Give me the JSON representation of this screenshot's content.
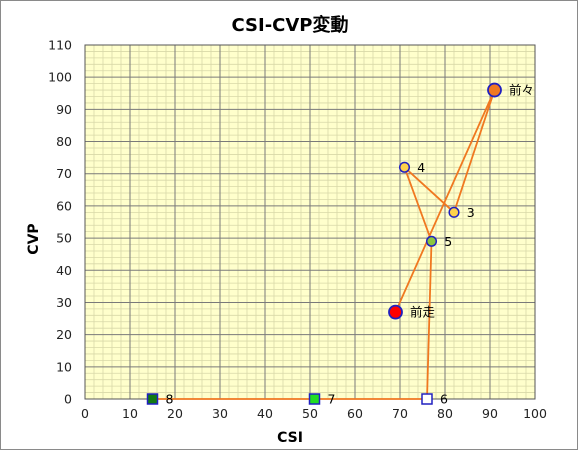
{
  "chart_data": {
    "type": "scatter",
    "title": "CSI-CVP変動",
    "xlabel": "CSI",
    "ylabel": "CVP",
    "xlim": [
      0,
      100
    ],
    "ylim": [
      0,
      110
    ],
    "x_ticks": [
      0,
      10,
      20,
      30,
      40,
      50,
      60,
      70,
      80,
      90,
      100
    ],
    "y_ticks": [
      0,
      10,
      20,
      30,
      40,
      50,
      60,
      70,
      80,
      90,
      100,
      110
    ],
    "grid": true,
    "minor_grid": true,
    "plot_background": "#ffffcc",
    "line_color": "#f07820",
    "points": [
      {
        "label": "前走",
        "x": 69,
        "y": 27,
        "marker": "circle",
        "fill": "#ff0000",
        "stroke": "#2020c0",
        "size": "large"
      },
      {
        "label": "前々",
        "x": 91,
        "y": 96,
        "marker": "circle",
        "fill": "#f07820",
        "stroke": "#2020c0",
        "size": "large"
      },
      {
        "label": "3",
        "x": 82,
        "y": 58,
        "marker": "circle",
        "fill": "#ffd24a",
        "stroke": "#2020c0",
        "size": "small"
      },
      {
        "label": "4",
        "x": 71,
        "y": 72,
        "marker": "circle",
        "fill": "#ffd24a",
        "stroke": "#2020c0",
        "size": "small"
      },
      {
        "label": "5",
        "x": 77,
        "y": 49,
        "marker": "circle",
        "fill": "#8cc63f",
        "stroke": "#2020c0",
        "size": "small"
      },
      {
        "label": "6",
        "x": 76,
        "y": 0,
        "marker": "square",
        "fill": "#ffffff",
        "stroke": "#2020c0",
        "size": "small"
      },
      {
        "label": "7",
        "x": 51,
        "y": 0,
        "marker": "square",
        "fill": "#22dd22",
        "stroke": "#2020c0",
        "size": "small"
      },
      {
        "label": "8",
        "x": 15,
        "y": 0,
        "marker": "square",
        "fill": "#127a12",
        "stroke": "#2020c0",
        "size": "small"
      }
    ]
  }
}
